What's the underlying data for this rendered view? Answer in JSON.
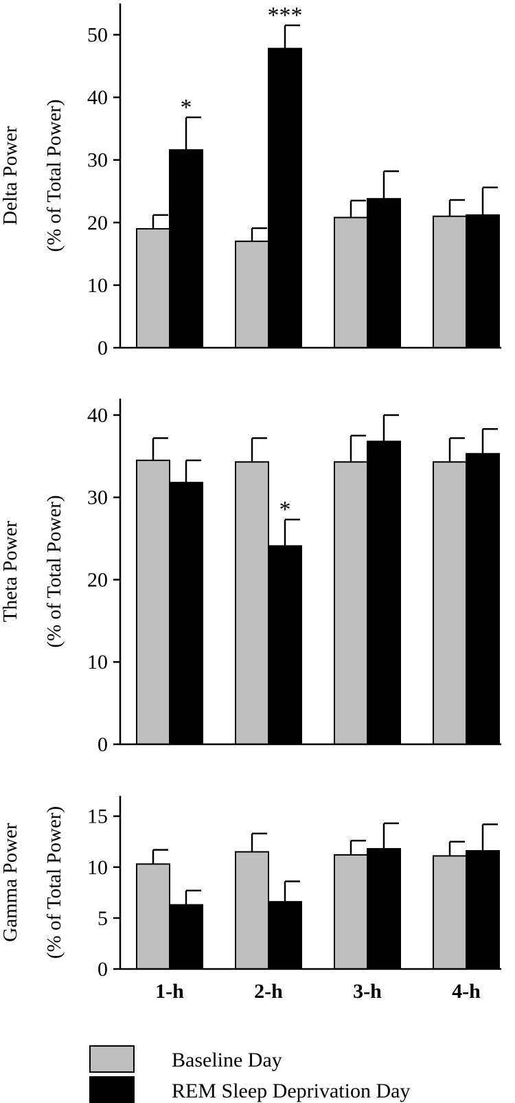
{
  "chart_data": [
    {
      "type": "bar",
      "ylabel": [
        "Delta Power",
        "(% of Total Power)"
      ],
      "ylim": [
        0,
        55
      ],
      "yticks": [
        0,
        10,
        20,
        30,
        40,
        50
      ],
      "categories": [
        "1-h",
        "2-h",
        "3-h",
        "4-h"
      ],
      "series": [
        {
          "name": "Baseline Day",
          "values": [
            19.0,
            17.0,
            20.8,
            21.0
          ],
          "errors": [
            2.2,
            2.1,
            2.7,
            2.6
          ]
        },
        {
          "name": "REM Sleep Deprivation Day",
          "values": [
            31.6,
            47.8,
            23.8,
            21.2
          ],
          "errors": [
            5.2,
            3.7,
            4.4,
            4.4
          ]
        }
      ],
      "annotations": [
        {
          "category": "1-h",
          "series": "REM Sleep Deprivation Day",
          "text": "*"
        },
        {
          "category": "2-h",
          "series": "REM Sleep Deprivation Day",
          "text": "***"
        }
      ]
    },
    {
      "type": "bar",
      "ylabel": [
        "Theta Power",
        "(% of Total Power)"
      ],
      "ylim": [
        0,
        42
      ],
      "yticks": [
        0,
        10,
        20,
        30,
        40
      ],
      "categories": [
        "1-h",
        "2-h",
        "3-h",
        "4-h"
      ],
      "series": [
        {
          "name": "Baseline Day",
          "values": [
            34.5,
            34.3,
            34.3,
            34.3
          ],
          "errors": [
            2.7,
            2.9,
            3.2,
            2.9
          ]
        },
        {
          "name": "REM Sleep Deprivation Day",
          "values": [
            31.8,
            24.1,
            36.8,
            35.3
          ],
          "errors": [
            2.7,
            3.2,
            3.2,
            3.0
          ]
        }
      ],
      "annotations": [
        {
          "category": "2-h",
          "series": "REM Sleep Deprivation Day",
          "text": "*"
        }
      ]
    },
    {
      "type": "bar",
      "ylabel": [
        "Gamma Power",
        "(% of Total Power)"
      ],
      "ylim": [
        0,
        17
      ],
      "yticks": [
        0,
        5,
        10,
        15
      ],
      "categories": [
        "1-h",
        "2-h",
        "3-h",
        "4-h"
      ],
      "series": [
        {
          "name": "Baseline Day",
          "values": [
            10.3,
            11.5,
            11.2,
            11.1
          ],
          "errors": [
            1.4,
            1.8,
            1.4,
            1.4
          ]
        },
        {
          "name": "REM Sleep Deprivation Day",
          "values": [
            6.3,
            6.6,
            11.8,
            11.6
          ],
          "errors": [
            1.4,
            2.0,
            2.5,
            2.6
          ]
        }
      ],
      "annotations": []
    }
  ],
  "legend": {
    "items": [
      {
        "label": "Baseline Day",
        "color": "#bfbfbf"
      },
      {
        "label": "REM Sleep Deprivation Day",
        "color": "#000000"
      }
    ]
  },
  "colors": {
    "baseline": "#bfbfbf",
    "rem": "#000000",
    "axis": "#000000"
  }
}
